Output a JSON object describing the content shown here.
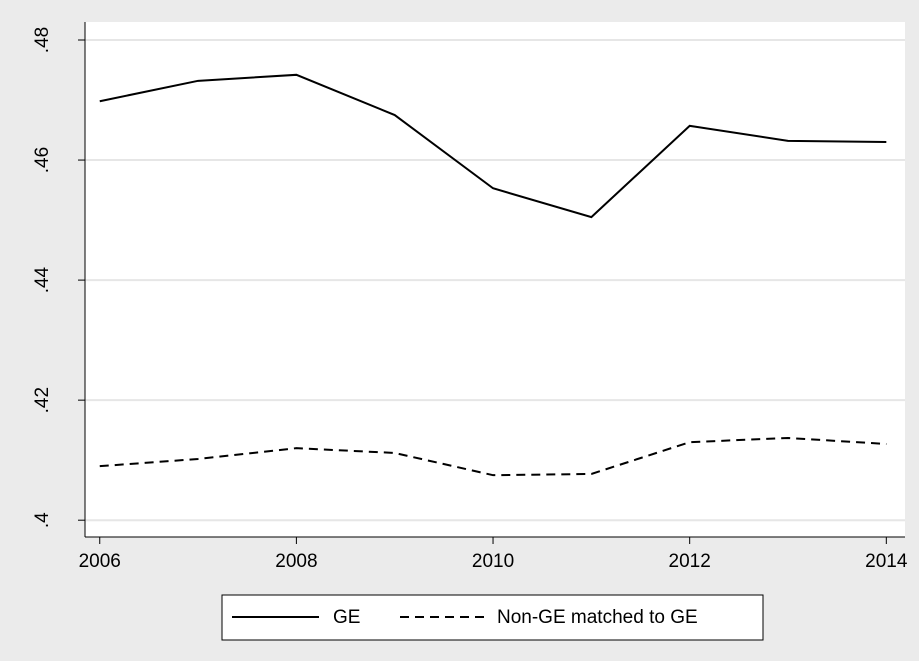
{
  "chart_data": {
    "type": "line",
    "x": [
      2006,
      2007,
      2008,
      2009,
      2010,
      2011,
      2012,
      2013,
      2014
    ],
    "series": [
      {
        "name": "GE",
        "color": "#000000",
        "dash": "solid",
        "values": [
          0.4698,
          0.4732,
          0.4742,
          0.4675,
          0.4553,
          0.4505,
          0.4657,
          0.4632,
          0.463
        ]
      },
      {
        "name": "Non-GE matched to GE",
        "color": "#000000",
        "dash": "dashed",
        "values": [
          0.409,
          0.4102,
          0.412,
          0.4112,
          0.4075,
          0.4077,
          0.413,
          0.4137,
          0.4127
        ]
      }
    ],
    "xlim": [
      2005.85,
      2014.19
    ],
    "xticks": [
      2006,
      2008,
      2010,
      2012,
      2014
    ],
    "ylim": [
      0.3972,
      0.483
    ],
    "yticks": [
      {
        "value": 0.4,
        "label": ".4"
      },
      {
        "value": 0.42,
        "label": ".42"
      },
      {
        "value": 0.44,
        "label": ".44"
      },
      {
        "value": 0.46,
        "label": ".46"
      },
      {
        "value": 0.48,
        "label": ".48"
      }
    ],
    "grid": true
  }
}
